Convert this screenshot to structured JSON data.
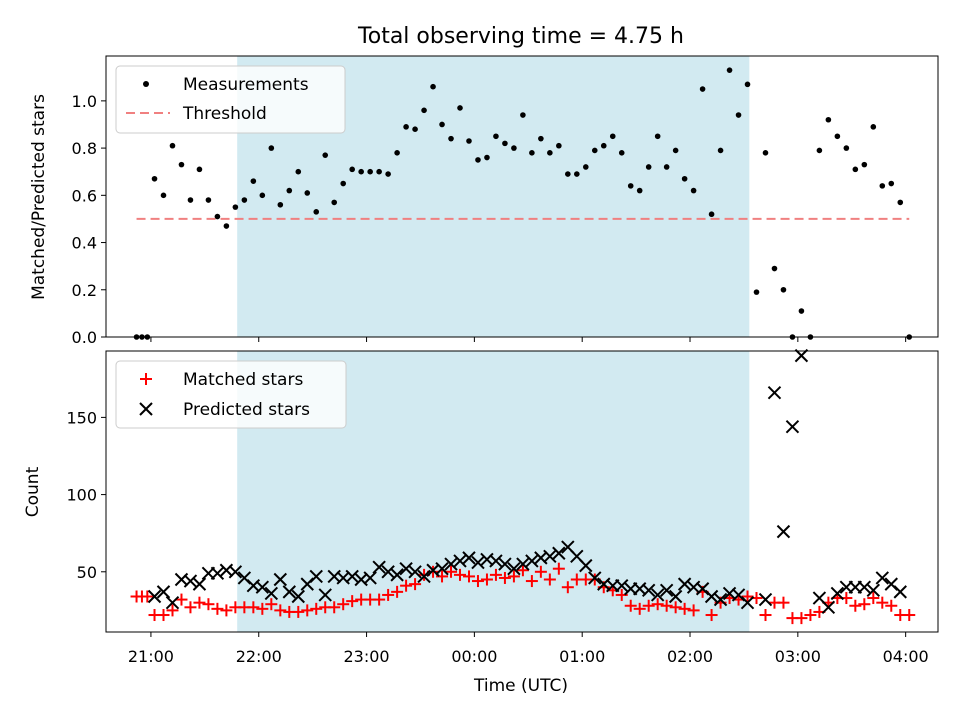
{
  "figure_title": "Total observing time = 4.75 h",
  "x_axis": {
    "label": "Time (UTC)",
    "ticks": [
      {
        "t": 0,
        "label": "21:00"
      },
      {
        "t": 60,
        "label": "22:00"
      },
      {
        "t": 120,
        "label": "23:00"
      },
      {
        "t": 180,
        "label": "00:00"
      },
      {
        "t": 240,
        "label": "01:00"
      },
      {
        "t": 300,
        "label": "02:00"
      },
      {
        "t": 360,
        "label": "03:00"
      },
      {
        "t": 420,
        "label": "04:00"
      }
    ]
  },
  "shaded_interval": {
    "start": "21:48",
    "end": "02:33",
    "color": "#add8e6"
  },
  "chart_data": [
    {
      "type": "scatter",
      "title": "",
      "xlabel": "",
      "ylabel": "Matched/Predicted stars",
      "xlim": [
        "20:35",
        "04:18"
      ],
      "ylim": [
        0,
        1.19
      ],
      "yticks": [
        {
          "v": 0.0,
          "label": "0.0"
        },
        {
          "v": 0.2,
          "label": "0.2"
        },
        {
          "v": 0.4,
          "label": "0.4"
        },
        {
          "v": 0.6,
          "label": "0.6"
        },
        {
          "v": 0.8,
          "label": "0.8"
        },
        {
          "v": 1.0,
          "label": "1.0"
        }
      ],
      "legend": {
        "position": "upper-left",
        "entries": [
          "Measurements",
          "Threshold"
        ]
      },
      "series": [
        {
          "name": "Measurements",
          "marker": "dot",
          "color": "#000000",
          "x": [
            "20:52",
            "20:55",
            "20:58",
            "21:02",
            "21:07",
            "21:12",
            "21:17",
            "21:22",
            "21:27",
            "21:32",
            "21:37",
            "21:42",
            "21:47",
            "21:52",
            "21:57",
            "22:02",
            "22:07",
            "22:12",
            "22:17",
            "22:22",
            "22:27",
            "22:32",
            "22:37",
            "22:42",
            "22:47",
            "22:52",
            "22:57",
            "23:02",
            "23:07",
            "23:12",
            "23:17",
            "23:22",
            "23:27",
            "23:32",
            "23:37",
            "23:42",
            "23:47",
            "23:52",
            "23:57",
            "00:02",
            "00:07",
            "00:12",
            "00:17",
            "00:22",
            "00:27",
            "00:32",
            "00:37",
            "00:42",
            "00:47",
            "00:52",
            "00:57",
            "01:02",
            "01:07",
            "01:12",
            "01:17",
            "01:22",
            "01:27",
            "01:32",
            "01:37",
            "01:42",
            "01:47",
            "01:52",
            "01:57",
            "02:02",
            "02:07",
            "02:12",
            "02:17",
            "02:22",
            "02:27",
            "02:32",
            "02:37",
            "02:42",
            "02:47",
            "02:52",
            "02:57",
            "03:02",
            "03:07",
            "03:12",
            "03:17",
            "03:22",
            "03:27",
            "03:32",
            "03:37",
            "03:42",
            "03:47",
            "03:52",
            "03:57",
            "04:02"
          ],
          "y": [
            0.0,
            0.0,
            0.0,
            0.67,
            0.6,
            0.81,
            0.73,
            0.58,
            0.71,
            0.58,
            0.51,
            0.47,
            0.55,
            0.58,
            0.66,
            0.6,
            0.8,
            0.56,
            0.62,
            0.7,
            0.61,
            0.53,
            0.77,
            0.57,
            0.65,
            0.71,
            0.7,
            0.7,
            0.7,
            0.69,
            0.78,
            0.89,
            0.88,
            0.96,
            1.06,
            0.9,
            0.84,
            0.97,
            0.83,
            0.75,
            0.76,
            0.85,
            0.82,
            0.8,
            0.94,
            0.78,
            0.84,
            0.78,
            0.81,
            0.69,
            0.69,
            0.72,
            0.79,
            0.81,
            0.85,
            0.78,
            0.64,
            0.62,
            0.72,
            0.85,
            0.72,
            0.79,
            0.67,
            0.62,
            1.05,
            0.52,
            0.79,
            1.13,
            0.94,
            1.07,
            0.19,
            0.78,
            0.29,
            0.2,
            0.0,
            0.11,
            0.0,
            0.79,
            0.92,
            0.85,
            0.8,
            0.71,
            0.73,
            0.89,
            0.64,
            0.65,
            0.57,
            0.0
          ]
        },
        {
          "name": "Threshold",
          "style": "dashed",
          "color": "#f08080",
          "x": [
            "20:52",
            "04:02"
          ],
          "y": [
            0.5,
            0.5
          ]
        }
      ]
    },
    {
      "type": "scatter",
      "title": "",
      "xlabel": "Time (UTC)",
      "ylabel": "Count",
      "xlim": [
        "20:35",
        "04:18"
      ],
      "ylim": [
        11,
        193
      ],
      "yticks": [
        {
          "v": 50,
          "label": "50"
        },
        {
          "v": 100,
          "label": "100"
        },
        {
          "v": 150,
          "label": "150"
        }
      ],
      "legend": {
        "position": "upper-left",
        "entries": [
          "Matched stars",
          "Predicted stars"
        ]
      },
      "series": [
        {
          "name": "Matched stars",
          "marker": "plus",
          "color": "#ff0000",
          "x": [
            "20:52",
            "20:55",
            "20:58",
            "21:02",
            "21:07",
            "21:12",
            "21:17",
            "21:22",
            "21:27",
            "21:32",
            "21:37",
            "21:42",
            "21:47",
            "21:52",
            "21:57",
            "22:02",
            "22:07",
            "22:12",
            "22:17",
            "22:22",
            "22:27",
            "22:32",
            "22:37",
            "22:42",
            "22:47",
            "22:52",
            "22:57",
            "23:02",
            "23:07",
            "23:12",
            "23:17",
            "23:22",
            "23:27",
            "23:32",
            "23:37",
            "23:42",
            "23:47",
            "23:52",
            "23:57",
            "00:02",
            "00:07",
            "00:12",
            "00:17",
            "00:22",
            "00:27",
            "00:32",
            "00:37",
            "00:42",
            "00:47",
            "00:52",
            "00:57",
            "01:02",
            "01:07",
            "01:12",
            "01:17",
            "01:22",
            "01:27",
            "01:32",
            "01:37",
            "01:42",
            "01:47",
            "01:52",
            "01:57",
            "02:02",
            "02:07",
            "02:12",
            "02:17",
            "02:22",
            "02:27",
            "02:32",
            "02:37",
            "02:42",
            "02:47",
            "02:52",
            "02:57",
            "03:02",
            "03:07",
            "03:12",
            "03:17",
            "03:22",
            "03:27",
            "03:32",
            "03:37",
            "03:42",
            "03:47",
            "03:52",
            "03:57",
            "04:02"
          ],
          "y": [
            34,
            34,
            34,
            22,
            22,
            25,
            32,
            27,
            30,
            29,
            26,
            25,
            27,
            27,
            27,
            26,
            29,
            25,
            24,
            24,
            25,
            26,
            27,
            27,
            29,
            31,
            32,
            32,
            32,
            35,
            37,
            41,
            42,
            48,
            50,
            47,
            50,
            48,
            47,
            44,
            45,
            48,
            46,
            47,
            51,
            44,
            50,
            45,
            52,
            40,
            45,
            45,
            45,
            40,
            38,
            35,
            28,
            26,
            28,
            29,
            28,
            27,
            26,
            25,
            37,
            22,
            30,
            33,
            32,
            34,
            33,
            22,
            30,
            30,
            20,
            20,
            22,
            24,
            30,
            33,
            33,
            28,
            29,
            33,
            30,
            28,
            22,
            22
          ]
        },
        {
          "name": "Predicted stars",
          "marker": "x",
          "color": "#000000",
          "x": [
            "21:02",
            "21:07",
            "21:12",
            "21:17",
            "21:22",
            "21:27",
            "21:32",
            "21:37",
            "21:42",
            "21:47",
            "21:52",
            "21:57",
            "22:02",
            "22:07",
            "22:12",
            "22:17",
            "22:22",
            "22:27",
            "22:32",
            "22:37",
            "22:42",
            "22:47",
            "22:52",
            "22:57",
            "23:02",
            "23:07",
            "23:12",
            "23:17",
            "23:22",
            "23:27",
            "23:32",
            "23:37",
            "23:42",
            "23:47",
            "23:52",
            "23:57",
            "00:02",
            "00:07",
            "00:12",
            "00:17",
            "00:22",
            "00:27",
            "00:32",
            "00:37",
            "00:42",
            "00:47",
            "00:52",
            "00:57",
            "01:02",
            "01:07",
            "01:12",
            "01:17",
            "01:22",
            "01:27",
            "01:32",
            "01:37",
            "01:42",
            "01:47",
            "01:52",
            "01:57",
            "02:02",
            "02:07",
            "02:12",
            "02:17",
            "02:22",
            "02:27",
            "02:32",
            "02:42",
            "02:47",
            "02:52",
            "02:57",
            "03:02",
            "03:12",
            "03:17",
            "03:22",
            "03:27",
            "03:32",
            "03:37",
            "03:42",
            "03:47",
            "03:52",
            "03:57"
          ],
          "y": [
            34,
            37,
            30,
            45,
            44,
            42,
            49,
            49,
            51,
            50,
            46,
            41,
            40,
            36,
            45,
            37,
            34,
            42,
            47,
            35,
            47,
            46,
            47,
            45,
            46,
            53,
            50,
            48,
            52,
            50,
            47,
            51,
            52,
            55,
            57,
            59,
            56,
            58,
            57,
            55,
            52,
            55,
            57,
            59,
            60,
            62,
            66,
            60,
            54,
            46,
            42,
            41,
            41,
            39,
            39,
            38,
            35,
            38,
            34,
            42,
            40,
            39,
            34,
            32,
            36,
            35,
            30,
            32,
            166,
            76,
            144,
            190,
            33,
            27,
            36,
            40,
            40,
            40,
            38,
            46,
            42,
            37
          ]
        }
      ]
    }
  ]
}
